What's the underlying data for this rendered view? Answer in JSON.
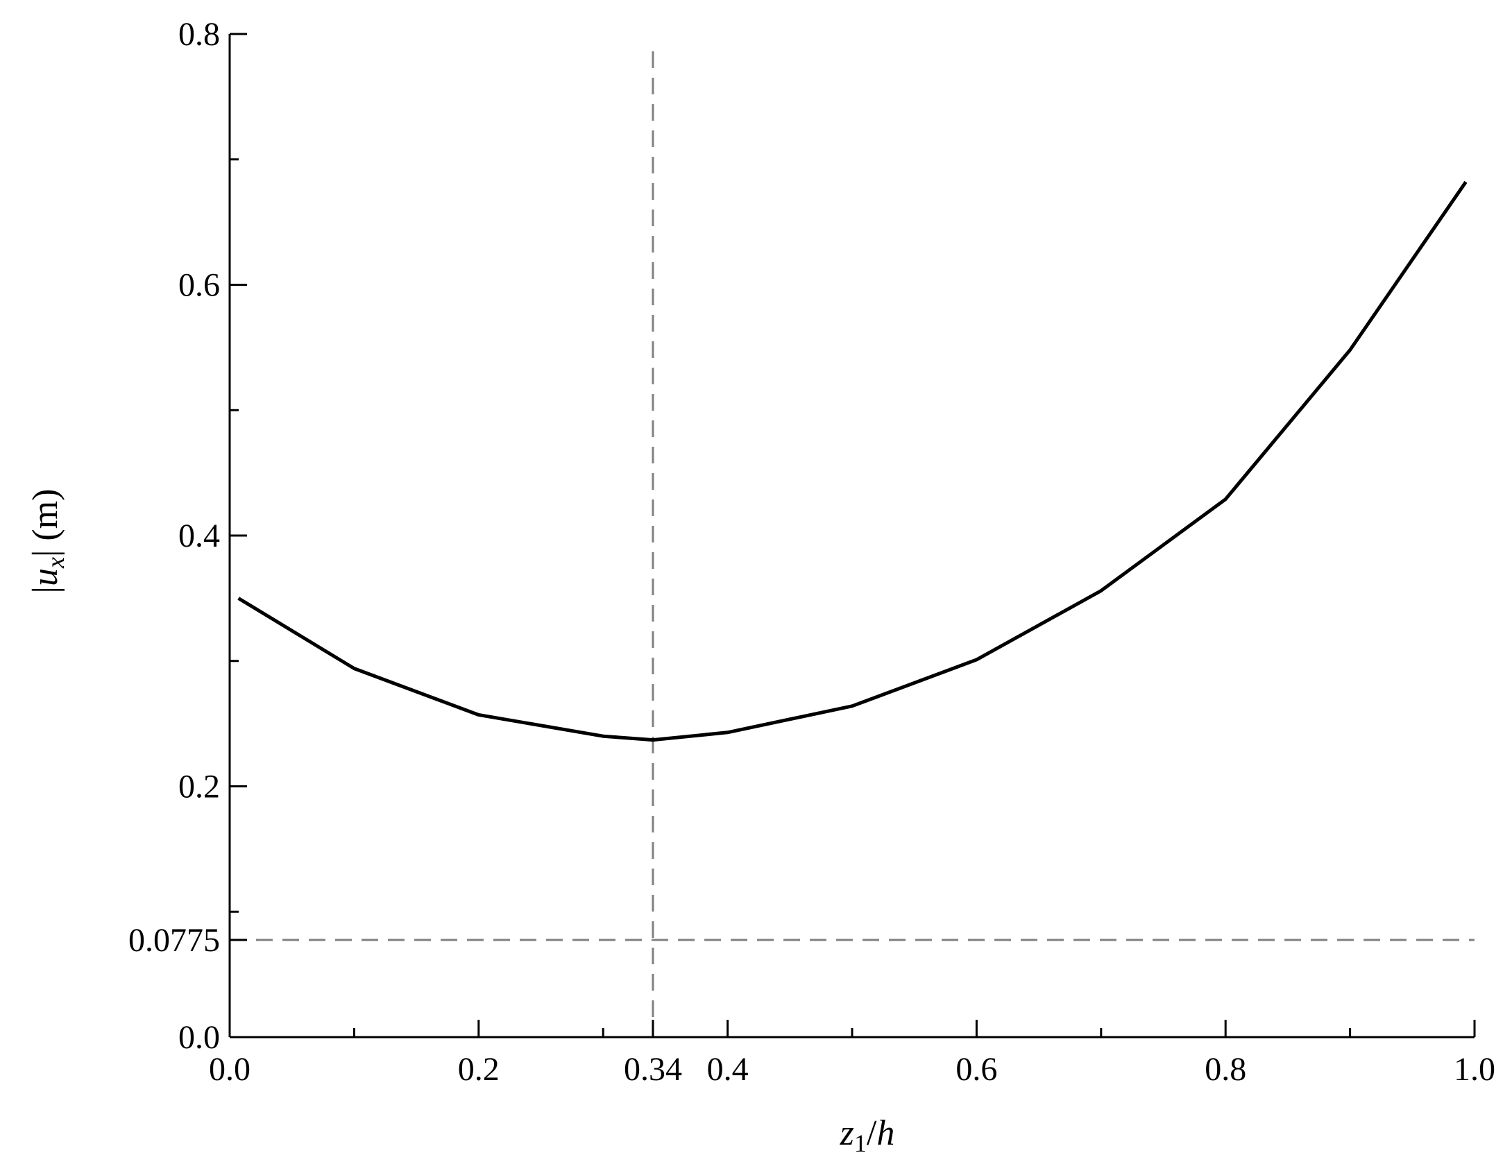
{
  "chart_data": {
    "type": "line",
    "xlabel": [
      "z",
      "1",
      "/",
      "h"
    ],
    "ylabel": [
      "|",
      "u",
      "x",
      "| (m)"
    ],
    "x": [
      0.007,
      0.1,
      0.2,
      0.3,
      0.34,
      0.4,
      0.5,
      0.6,
      0.7,
      0.8,
      0.9,
      0.993
    ],
    "series": [
      {
        "color": "#000000",
        "values": [
          0.35,
          0.294,
          0.257,
          0.24,
          0.237,
          0.243,
          0.264,
          0.301,
          0.356,
          0.429,
          0.548,
          0.682
        ]
      }
    ],
    "xlim": [
      0,
      1
    ],
    "ylim": [
      0,
      0.8
    ],
    "xticks": [
      {
        "value": 0,
        "label": "0.0"
      },
      0.2,
      0.34,
      0.4,
      0.6,
      0.8,
      {
        "value": 1,
        "label": "1.0"
      }
    ],
    "yticks": [
      {
        "value": 0,
        "label": "0.0"
      },
      0.0775,
      0.2,
      0.4,
      0.6,
      0.8
    ],
    "xminor_ticks": [
      0.1,
      0.3,
      0.5,
      0.7,
      0.9
    ],
    "yminor_ticks": [
      0.1,
      0.3,
      0.5,
      0.7
    ],
    "vlines": [
      0.34
    ],
    "hlines": [
      0.0775
    ],
    "reference_color": "#808080"
  }
}
